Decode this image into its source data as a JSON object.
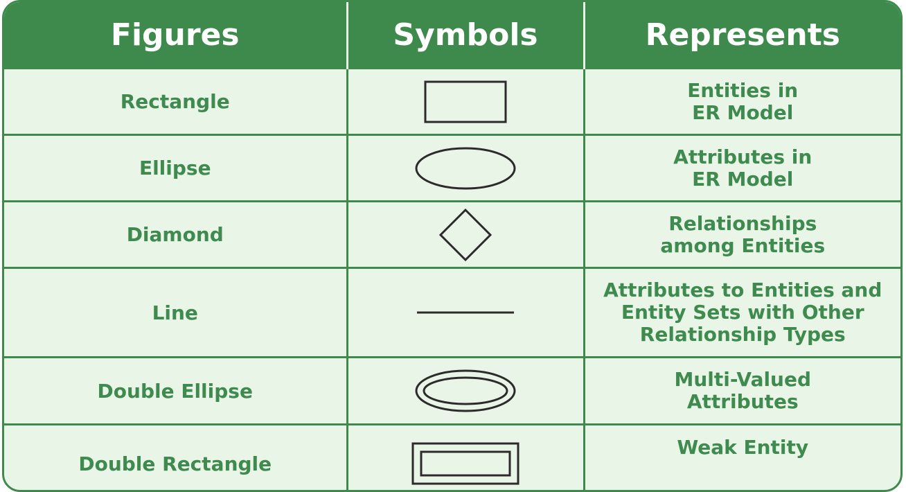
{
  "header": {
    "col_figures": "Figures",
    "col_symbols": "Symbols",
    "col_represents": "Represents"
  },
  "rows": [
    {
      "figure": "Rectangle",
      "symbol": "rectangle-icon",
      "represents": "Entities in\nER Model"
    },
    {
      "figure": "Ellipse",
      "symbol": "ellipse-icon",
      "represents": "Attributes in\nER Model"
    },
    {
      "figure": "Diamond",
      "symbol": "diamond-icon",
      "represents": "Relationships\namong Entities"
    },
    {
      "figure": "Line",
      "symbol": "line-icon",
      "represents": "Attributes to Entities and\nEntity Sets with Other\nRelationship Types"
    },
    {
      "figure": "Double Ellipse",
      "symbol": "double-ellipse-icon",
      "represents": "Multi-Valued\nAttributes"
    },
    {
      "figure": "Double Rectangle",
      "symbol": "double-rectangle-icon",
      "represents": "Weak Entity"
    }
  ],
  "colors": {
    "header_bg": "#3e8a4d",
    "body_bg": "#e9f5e6",
    "text": "#3f8a4f",
    "symbol_stroke": "#2b2b2b"
  }
}
